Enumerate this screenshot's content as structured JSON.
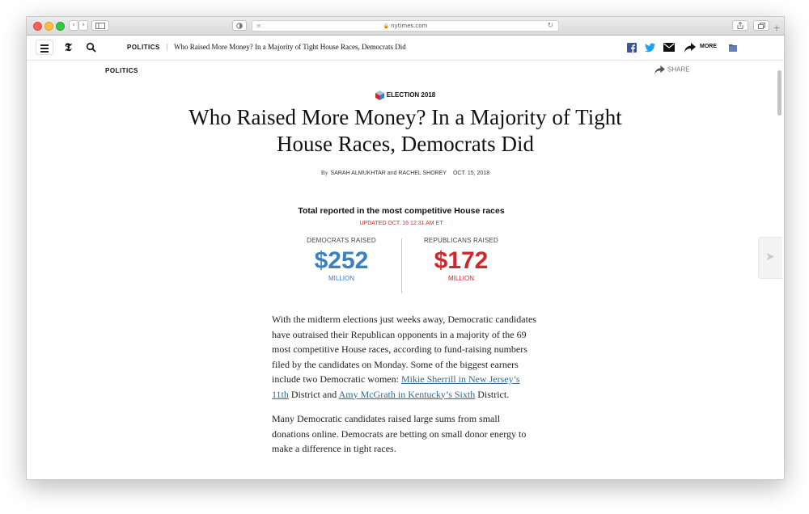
{
  "browser": {
    "url": "nytimes.com",
    "lock_glyph": "🔒",
    "reload_glyph": "↻",
    "back_glyph": "‹",
    "forward_glyph": "›",
    "new_tab_glyph": "+"
  },
  "navbar": {
    "logo": "𝕿",
    "section": "POLITICS",
    "separator": "|",
    "headline": "Who Raised More Money? In a Majority of Tight House Races, Democrats Did",
    "more_label": "MORE",
    "icons": [
      "menu-icon",
      "search-icon",
      "facebook-icon",
      "twitter-icon",
      "email-icon",
      "share-arrow-icon",
      "save-icon"
    ]
  },
  "article": {
    "kicker": "POLITICS",
    "share_label": "SHARE",
    "election_label": "ELECTION 2018",
    "title": "Who Raised More Money? In a Majority of Tight House Races, Democrats Did",
    "byline": {
      "prefix": "By",
      "authors": "SARAH ALMUKHTAR and RACHEL SHOREY",
      "date": "OCT. 15, 2018"
    },
    "graphic": {
      "title": "Total reported in the most competitive House races",
      "updated": "UPDATED OCT. 16 12:31 AM ET",
      "democrats": {
        "label": "DEMOCRATS RAISED",
        "amount": "$252",
        "unit": "MILLION",
        "color": "#3a80c3"
      },
      "republicans": {
        "label": "REPUBLICANS RAISED",
        "amount": "$172",
        "unit": "MILLION",
        "color": "#d0272c"
      }
    },
    "paragraphs": {
      "p1_text_a": "With the midterm elections just weeks away, Democratic candidates have outraised their Republican opponents in a majority of the 69 most competitive House races, according to fund-raising numbers filed by the candidates on Monday. Some of the biggest earners include two Democratic women: ",
      "p1_link_1": "Mikie Sherrill in New Jersey’s 11th",
      "p1_text_b": " District and ",
      "p1_link_2": "Amy McGrath in Kentucky’s Sixth",
      "p1_text_c": " District.",
      "p2": "Many Democratic candidates raised large sums from small donations online. Democrats are betting on small donor energy to make a difference in tight races."
    }
  },
  "side_arrow_glyph": "➤"
}
